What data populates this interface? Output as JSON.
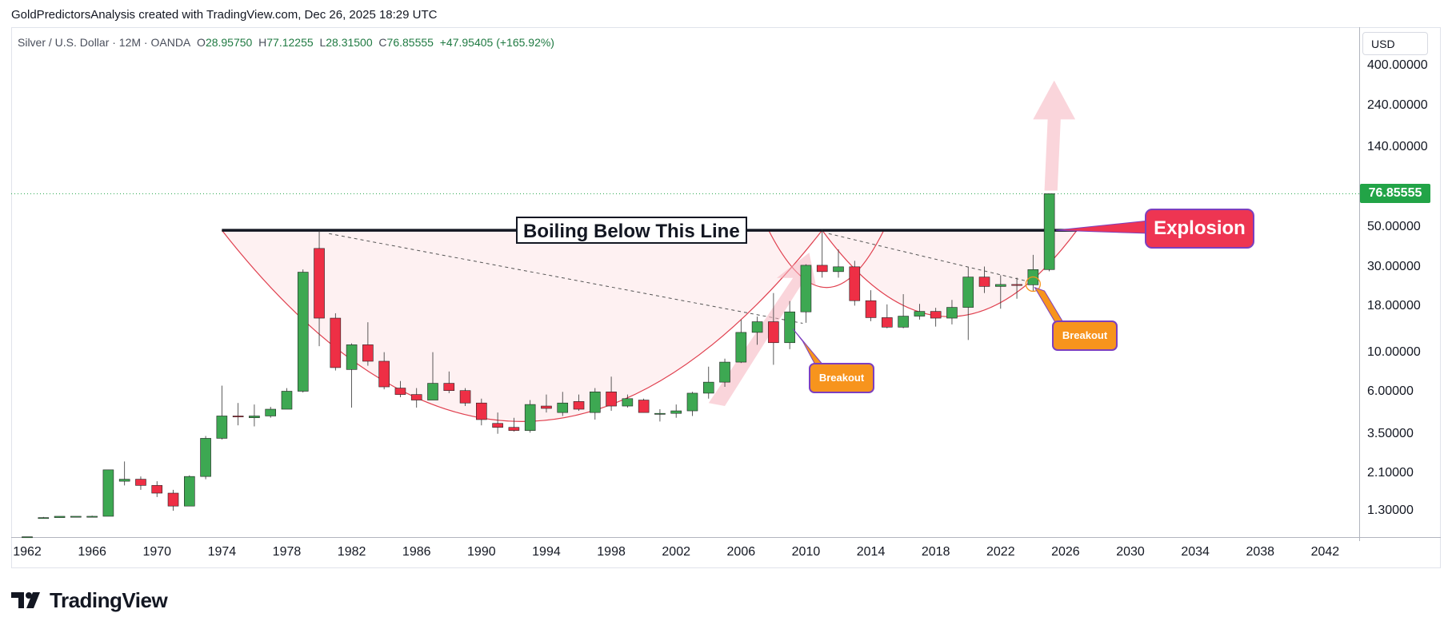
{
  "header": {
    "caption": "GoldPredictorsAnalysis created with TradingView.com, Dec 26, 2025 18:29 UTC"
  },
  "legend": {
    "symbol": "Silver / U.S. Dollar · 12M · OANDA",
    "open_label": "O",
    "open": "28.95750",
    "high_label": "H",
    "high": "77.12255",
    "low_label": "L",
    "low": "28.31500",
    "close_label": "C",
    "close": "76.85555",
    "change": "+47.95405 (+165.92%)"
  },
  "price_axis": {
    "currency": "USD",
    "ticks": [
      "400.00000",
      "240.00000",
      "140.00000",
      "50.00000",
      "30.00000",
      "18.00000",
      "10.00000",
      "6.00000",
      "3.50000",
      "2.10000",
      "1.30000"
    ],
    "last_price": "76.85555",
    "last_price_color": "#22a447"
  },
  "time_axis": {
    "ticks": [
      "1962",
      "1966",
      "1970",
      "1974",
      "1978",
      "1982",
      "1986",
      "1990",
      "1994",
      "1998",
      "2002",
      "2006",
      "2010",
      "2014",
      "2018",
      "2022",
      "2026",
      "2030",
      "2034",
      "2038",
      "2042"
    ]
  },
  "annotations": {
    "resistance_label": "Boiling Below This Line",
    "explosion_label": "Explosion",
    "breakout_1": "Breakout",
    "breakout_2": "Breakout"
  },
  "colors": {
    "up": "#3da852",
    "down": "#ee2f45",
    "resistance": "#131722",
    "cup": "#e0404f",
    "explosion": "#ee3552",
    "breakout": "#f7941d"
  },
  "brand": {
    "name": "TradingView"
  },
  "chart_data": {
    "type": "candlestick",
    "symbol": "Silver / U.S. Dollar",
    "interval": "12M",
    "y_scale": "log",
    "resistance_level": 48,
    "ylim": [
      0.9,
      500
    ],
    "xlim": [
      1962,
      2044
    ],
    "candles": [
      {
        "year": 1962,
        "open": 0.92,
        "high": 0.93,
        "low": 0.92,
        "close": 0.93
      },
      {
        "year": 1963,
        "open": 1.18,
        "high": 1.2,
        "low": 1.18,
        "close": 1.19
      },
      {
        "year": 1964,
        "open": 1.19,
        "high": 1.21,
        "low": 1.19,
        "close": 1.21
      },
      {
        "year": 1965,
        "open": 1.21,
        "high": 1.21,
        "low": 1.2,
        "close": 1.21
      },
      {
        "year": 1966,
        "open": 1.21,
        "high": 1.22,
        "low": 1.2,
        "close": 1.21
      },
      {
        "year": 1967,
        "open": 1.21,
        "high": 2.2,
        "low": 1.21,
        "close": 2.2
      },
      {
        "year": 1968,
        "open": 1.9,
        "high": 2.45,
        "low": 1.8,
        "close": 1.95
      },
      {
        "year": 1969,
        "open": 1.95,
        "high": 2.02,
        "low": 1.7,
        "close": 1.8
      },
      {
        "year": 1970,
        "open": 1.8,
        "high": 1.9,
        "low": 1.55,
        "close": 1.63
      },
      {
        "year": 1971,
        "open": 1.63,
        "high": 1.7,
        "low": 1.3,
        "close": 1.38
      },
      {
        "year": 1972,
        "open": 1.38,
        "high": 2.05,
        "low": 1.38,
        "close": 2.02
      },
      {
        "year": 1973,
        "open": 2.02,
        "high": 3.4,
        "low": 1.95,
        "close": 3.3
      },
      {
        "year": 1974,
        "open": 3.3,
        "high": 6.5,
        "low": 3.25,
        "close": 4.4
      },
      {
        "year": 1975,
        "open": 4.4,
        "high": 5.2,
        "low": 3.9,
        "close": 4.35
      },
      {
        "year": 1976,
        "open": 4.3,
        "high": 5.1,
        "low": 3.85,
        "close": 4.4
      },
      {
        "year": 1977,
        "open": 4.4,
        "high": 4.95,
        "low": 4.3,
        "close": 4.8
      },
      {
        "year": 1978,
        "open": 4.8,
        "high": 6.3,
        "low": 4.8,
        "close": 6.05
      },
      {
        "year": 1979,
        "open": 6.05,
        "high": 29.0,
        "low": 5.95,
        "close": 28.0
      },
      {
        "year": 1980,
        "open": 38.0,
        "high": 48.0,
        "low": 10.8,
        "close": 15.5
      },
      {
        "year": 1981,
        "open": 15.5,
        "high": 16.5,
        "low": 7.9,
        "close": 8.2
      },
      {
        "year": 1982,
        "open": 8.0,
        "high": 11.2,
        "low": 4.9,
        "close": 11.0
      },
      {
        "year": 1983,
        "open": 11.0,
        "high": 14.7,
        "low": 8.4,
        "close": 8.9
      },
      {
        "year": 1984,
        "open": 8.9,
        "high": 10.0,
        "low": 6.2,
        "close": 6.4
      },
      {
        "year": 1985,
        "open": 6.3,
        "high": 6.9,
        "low": 5.6,
        "close": 5.8
      },
      {
        "year": 1986,
        "open": 5.8,
        "high": 6.3,
        "low": 4.9,
        "close": 5.4
      },
      {
        "year": 1987,
        "open": 5.4,
        "high": 10.0,
        "low": 5.4,
        "close": 6.7
      },
      {
        "year": 1988,
        "open": 6.7,
        "high": 7.8,
        "low": 5.9,
        "close": 6.1
      },
      {
        "year": 1989,
        "open": 6.1,
        "high": 6.3,
        "low": 5.0,
        "close": 5.2
      },
      {
        "year": 1990,
        "open": 5.2,
        "high": 5.5,
        "low": 3.9,
        "close": 4.2
      },
      {
        "year": 1991,
        "open": 4.0,
        "high": 4.6,
        "low": 3.5,
        "close": 3.8
      },
      {
        "year": 1992,
        "open": 3.8,
        "high": 4.3,
        "low": 3.6,
        "close": 3.65
      },
      {
        "year": 1993,
        "open": 3.65,
        "high": 5.4,
        "low": 3.55,
        "close": 5.1
      },
      {
        "year": 1994,
        "open": 5.0,
        "high": 5.8,
        "low": 4.6,
        "close": 4.85
      },
      {
        "year": 1995,
        "open": 4.6,
        "high": 6.0,
        "low": 4.4,
        "close": 5.2
      },
      {
        "year": 1996,
        "open": 5.3,
        "high": 5.8,
        "low": 4.7,
        "close": 4.8
      },
      {
        "year": 1997,
        "open": 4.6,
        "high": 6.3,
        "low": 4.2,
        "close": 6.0
      },
      {
        "year": 1998,
        "open": 6.0,
        "high": 7.3,
        "low": 4.7,
        "close": 5.0
      },
      {
        "year": 1999,
        "open": 5.0,
        "high": 5.8,
        "low": 4.9,
        "close": 5.5
      },
      {
        "year": 2000,
        "open": 5.4,
        "high": 5.5,
        "low": 4.6,
        "close": 4.6
      },
      {
        "year": 2001,
        "open": 4.55,
        "high": 4.8,
        "low": 4.1,
        "close": 4.55
      },
      {
        "year": 2002,
        "open": 4.55,
        "high": 5.1,
        "low": 4.3,
        "close": 4.7
      },
      {
        "year": 2003,
        "open": 4.7,
        "high": 6.0,
        "low": 4.4,
        "close": 5.9
      },
      {
        "year": 2004,
        "open": 5.9,
        "high": 8.3,
        "low": 5.5,
        "close": 6.8
      },
      {
        "year": 2005,
        "open": 6.8,
        "high": 9.2,
        "low": 6.4,
        "close": 8.8
      },
      {
        "year": 2006,
        "open": 8.8,
        "high": 15.2,
        "low": 8.7,
        "close": 12.9
      },
      {
        "year": 2007,
        "open": 12.9,
        "high": 15.8,
        "low": 11.0,
        "close": 14.8
      },
      {
        "year": 2008,
        "open": 14.8,
        "high": 21.4,
        "low": 8.5,
        "close": 11.3
      },
      {
        "year": 2009,
        "open": 11.3,
        "high": 19.3,
        "low": 10.4,
        "close": 16.8
      },
      {
        "year": 2010,
        "open": 16.8,
        "high": 31.0,
        "low": 14.6,
        "close": 30.6
      },
      {
        "year": 2011,
        "open": 30.6,
        "high": 48.5,
        "low": 26.1,
        "close": 28.2
      },
      {
        "year": 2012,
        "open": 28.2,
        "high": 37.5,
        "low": 26.1,
        "close": 30.0
      },
      {
        "year": 2013,
        "open": 30.0,
        "high": 32.4,
        "low": 18.2,
        "close": 19.4
      },
      {
        "year": 2014,
        "open": 19.4,
        "high": 22.2,
        "low": 14.9,
        "close": 15.6
      },
      {
        "year": 2015,
        "open": 15.6,
        "high": 18.5,
        "low": 13.6,
        "close": 13.8
      },
      {
        "year": 2016,
        "open": 13.8,
        "high": 21.1,
        "low": 13.6,
        "close": 15.9
      },
      {
        "year": 2017,
        "open": 15.9,
        "high": 18.6,
        "low": 15.2,
        "close": 16.9
      },
      {
        "year": 2018,
        "open": 16.9,
        "high": 17.7,
        "low": 13.9,
        "close": 15.5
      },
      {
        "year": 2019,
        "open": 15.5,
        "high": 19.6,
        "low": 14.3,
        "close": 17.8
      },
      {
        "year": 2020,
        "open": 17.8,
        "high": 29.8,
        "low": 11.7,
        "close": 26.3
      },
      {
        "year": 2021,
        "open": 26.3,
        "high": 30.1,
        "low": 21.4,
        "close": 23.3
      },
      {
        "year": 2022,
        "open": 23.3,
        "high": 26.9,
        "low": 17.5,
        "close": 23.9
      },
      {
        "year": 2023,
        "open": 23.9,
        "high": 26.1,
        "low": 19.9,
        "close": 23.8
      },
      {
        "year": 2024,
        "open": 23.8,
        "high": 35.0,
        "low": 21.9,
        "close": 28.95
      },
      {
        "year": 2025,
        "open": 28.9575,
        "high": 77.12255,
        "low": 28.315,
        "close": 76.85555
      }
    ]
  }
}
